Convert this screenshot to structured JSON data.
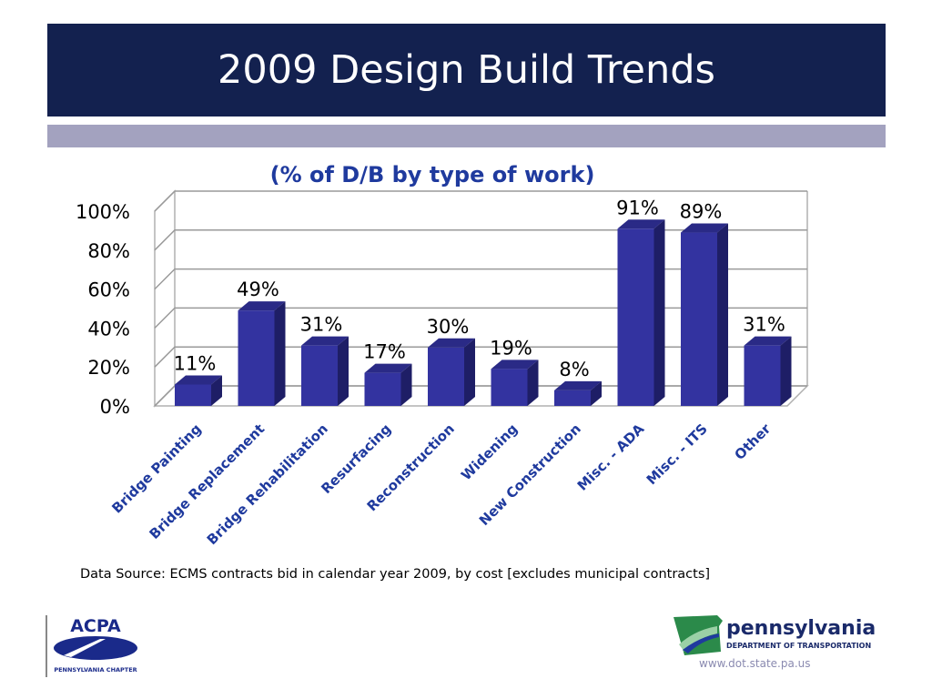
{
  "header": {
    "title": "2009 Design Build Trends"
  },
  "chart_data": {
    "type": "bar",
    "title": "(% of D/B by type of work)",
    "categories": [
      "Bridge Painting",
      "Bridge Replacement",
      "Bridge Rehabilitation",
      "Resurfacing",
      "Reconstruction",
      "Widening",
      "New Construction",
      "Misc. - ADA",
      "Misc. - ITS",
      "Other"
    ],
    "values": [
      11,
      49,
      31,
      17,
      30,
      19,
      8,
      91,
      89,
      31
    ],
    "data_labels": [
      "11%",
      "49%",
      "31%",
      "17%",
      "30%",
      "19%",
      "8%",
      "91%",
      "89%",
      "31%"
    ],
    "y_ticks": [
      "0%",
      "20%",
      "40%",
      "60%",
      "80%",
      "100%"
    ],
    "ylim": [
      0,
      100
    ],
    "grid": true,
    "colors": {
      "bar_front": "#3333a0",
      "bar_top": "#2a2a86",
      "bar_side": "#1e1e66",
      "title": "#1f3a9e"
    }
  },
  "footer": {
    "source": "Data Source: ECMS  contracts bid  in calendar year 2009, by cost [excludes municipal contracts]",
    "website": "www.dot.state.pa.us",
    "acpa_logo": {
      "name": "ACPA",
      "chapter": "PENNSYLVANIA CHAPTER"
    },
    "penndot_logo": {
      "name": "pennsylvania",
      "sub": "DEPARTMENT OF TRANSPORTATION"
    }
  }
}
